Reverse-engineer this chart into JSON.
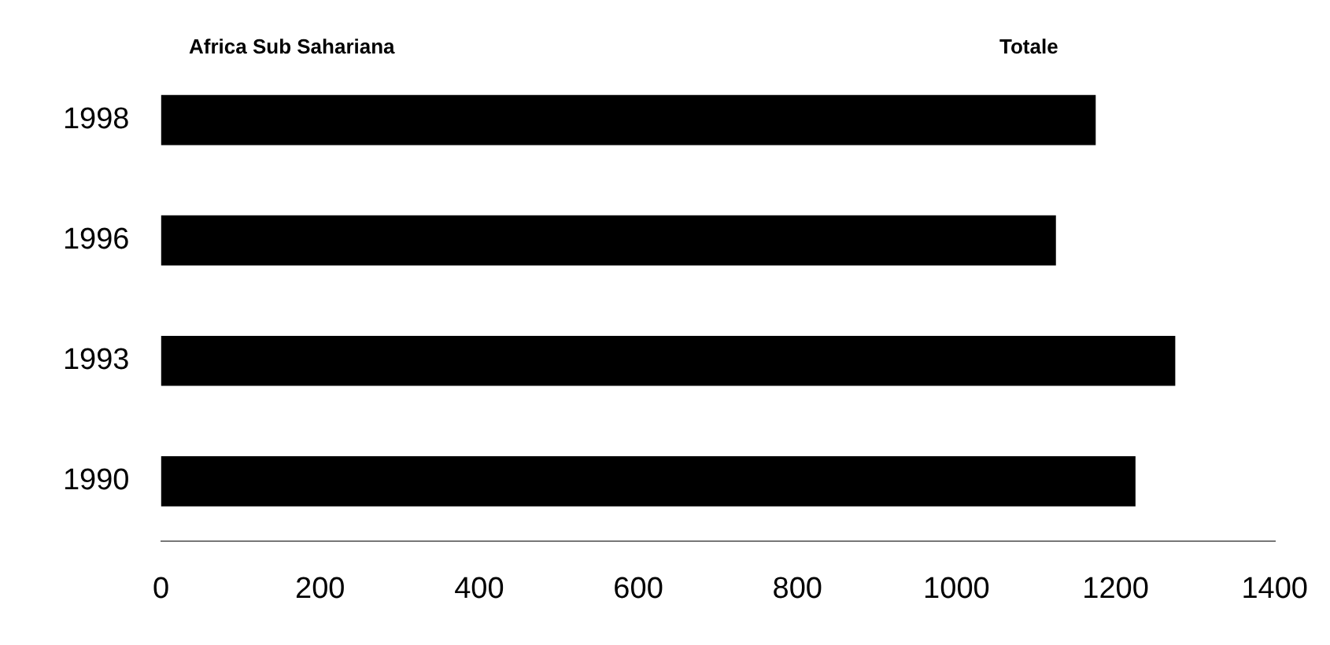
{
  "chart_data": {
    "type": "bar",
    "orientation": "horizontal",
    "categories": [
      "1998",
      "1996",
      "1993",
      "1990"
    ],
    "values": [
      1175,
      1125,
      1275,
      1225
    ],
    "color": "#000000",
    "xlim": [
      0,
      1400
    ],
    "xticks": [
      0,
      200,
      400,
      600,
      800,
      1000,
      1200,
      1400
    ],
    "grid": false,
    "legend": false,
    "annotations": [
      "Africa Sub Sahariana",
      "Totale"
    ]
  }
}
